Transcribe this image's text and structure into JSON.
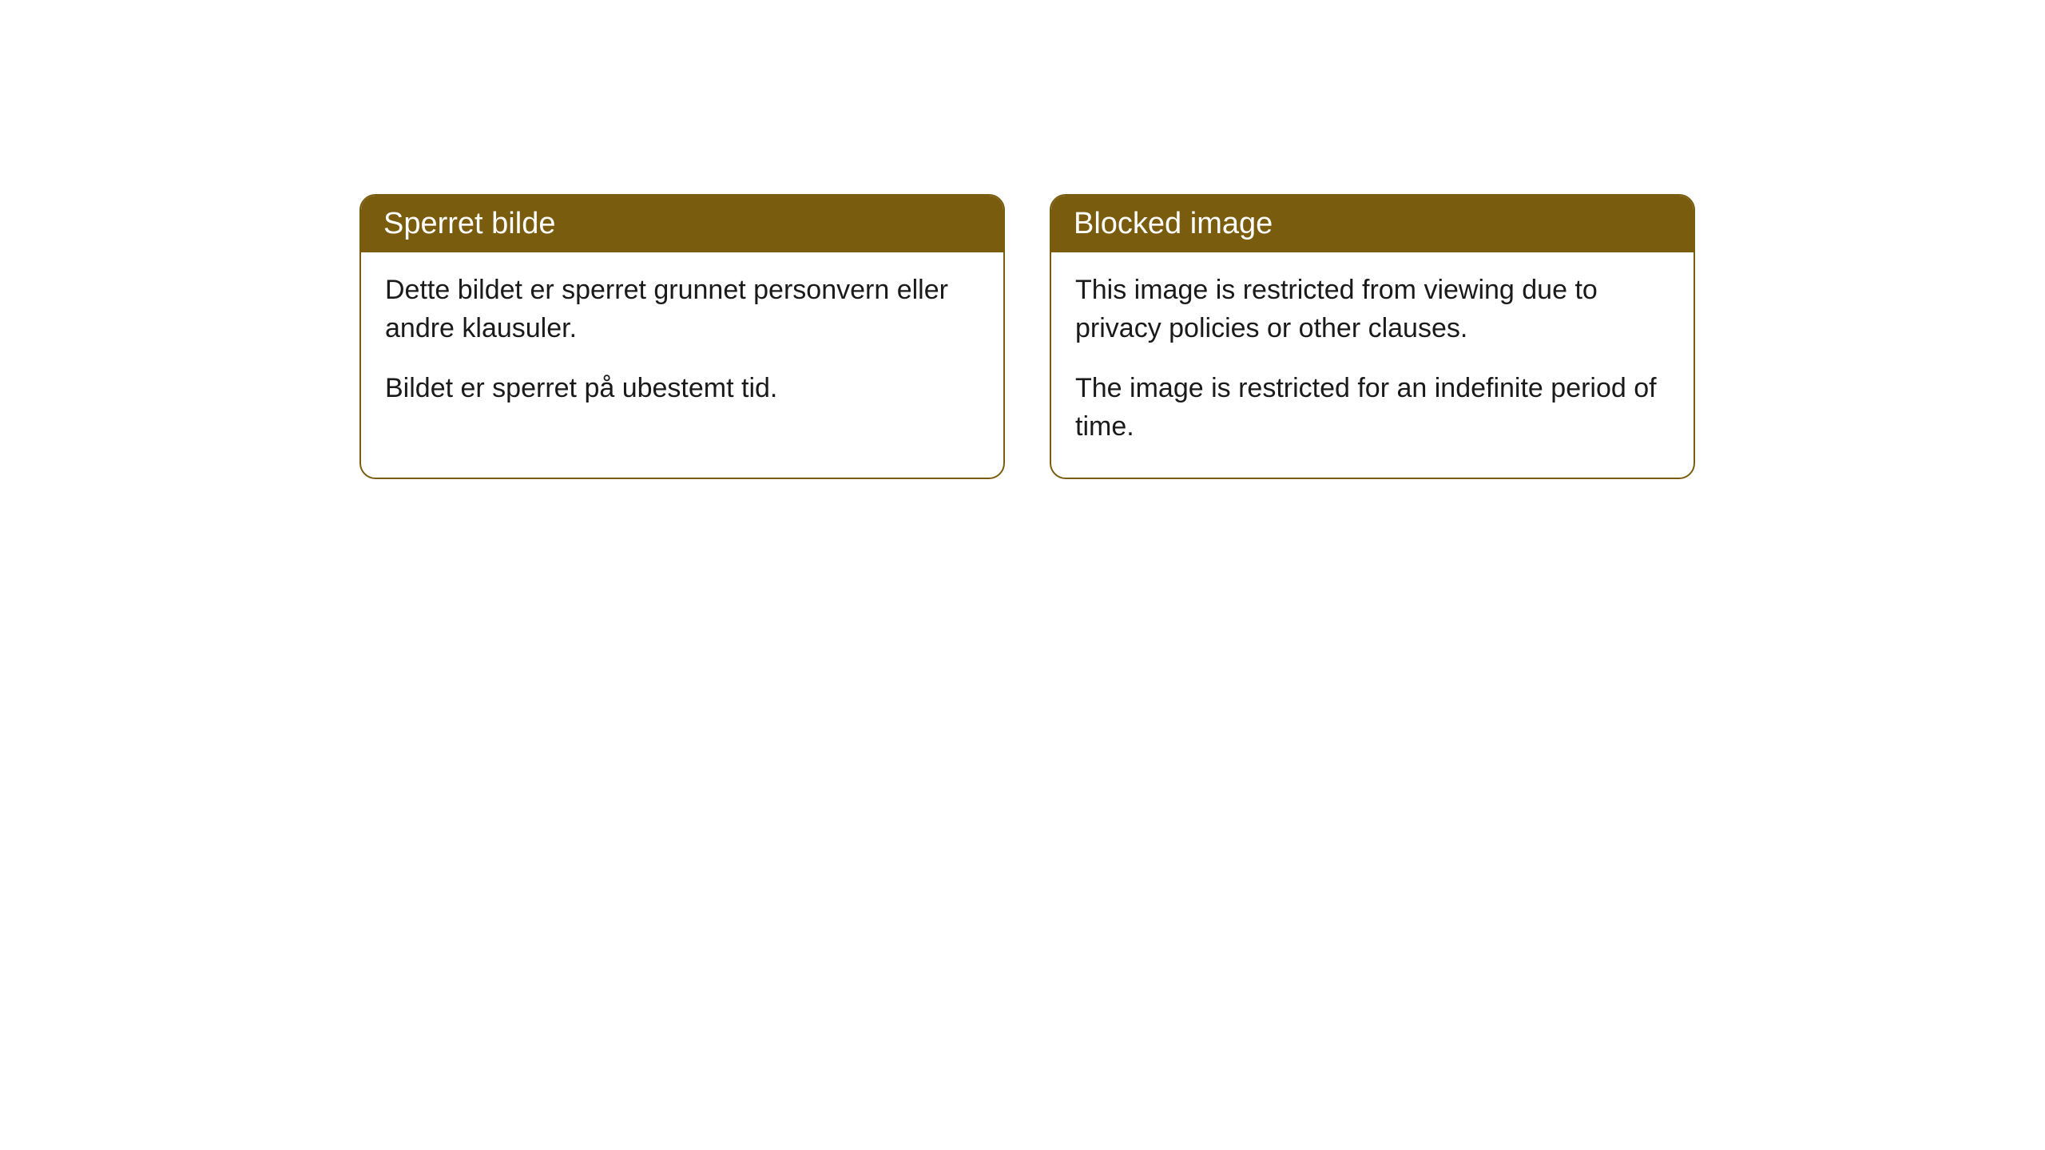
{
  "cards": [
    {
      "title": "Sperret bilde",
      "paragraph1": "Dette bildet er sperret grunnet personvern eller andre klausuler.",
      "paragraph2": "Bildet er sperret på ubestemt tid."
    },
    {
      "title": "Blocked image",
      "paragraph1": "This image is restricted from viewing due to privacy policies or other clauses.",
      "paragraph2": "The image is restricted for an indefinite period of time."
    }
  ],
  "styling": {
    "header_background_color": "#7a5c0f",
    "header_text_color": "#ffffff",
    "border_color": "#7a5c0f",
    "body_text_color": "#1a1a1a",
    "background_color": "#ffffff",
    "border_radius": 20,
    "header_fontsize": 38,
    "body_fontsize": 34
  }
}
